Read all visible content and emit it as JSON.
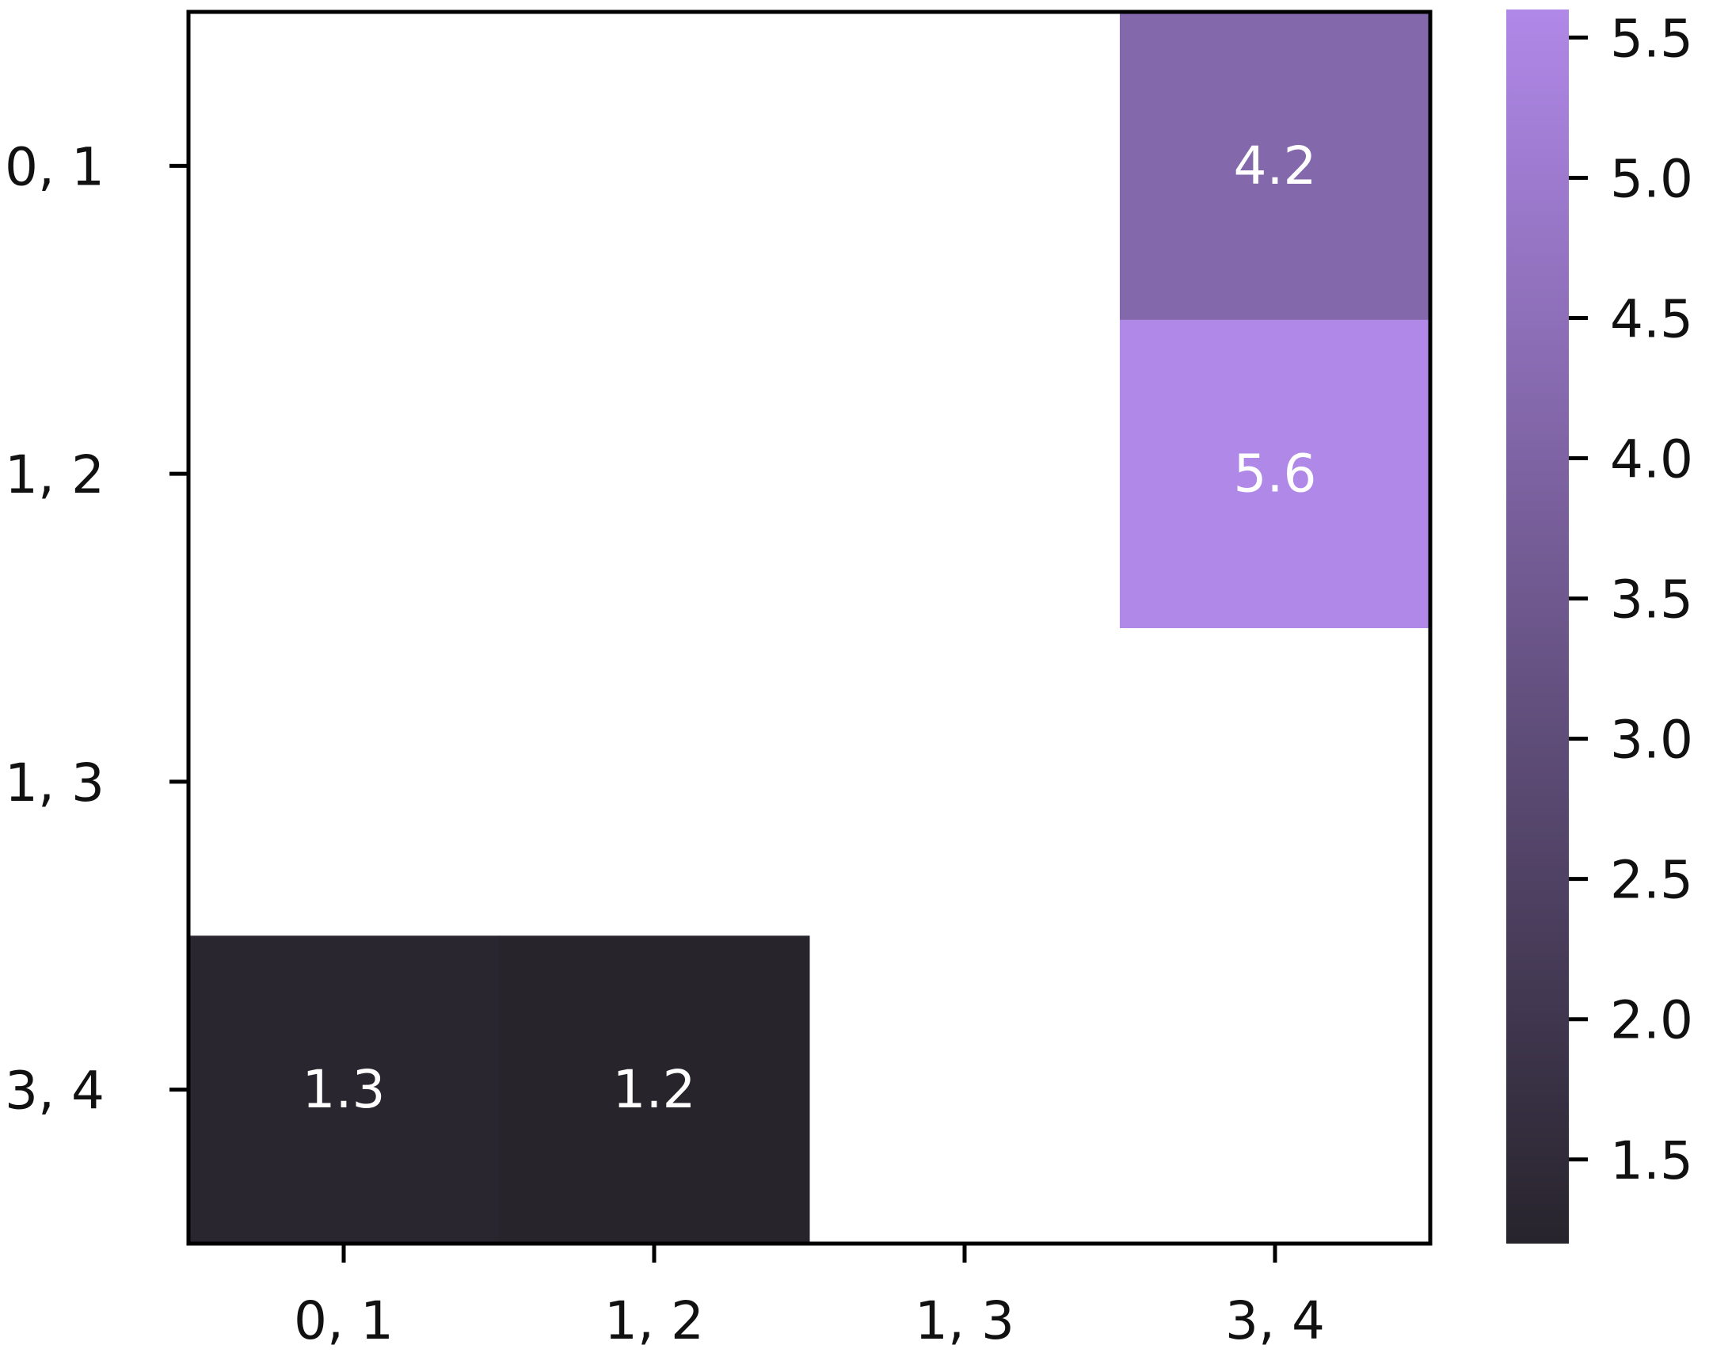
{
  "chart_data": {
    "type": "heatmap",
    "title": "",
    "xlabel": "",
    "ylabel": "",
    "x_categories": [
      "0, 1",
      "1, 2",
      "1, 3",
      "3, 4"
    ],
    "y_categories": [
      "0, 1",
      "1, 2",
      "1, 3",
      "3, 4"
    ],
    "values": [
      [
        null,
        null,
        null,
        4.2
      ],
      [
        null,
        null,
        null,
        5.6
      ],
      [
        null,
        null,
        null,
        null
      ],
      [
        1.3,
        1.2,
        null,
        null
      ]
    ],
    "cell_labels": [
      [
        null,
        null,
        null,
        "4.2"
      ],
      [
        null,
        null,
        null,
        "5.6"
      ],
      [
        null,
        null,
        null,
        null
      ],
      [
        "1.3",
        "1.2",
        null,
        null
      ]
    ],
    "missing_color": "#ffffff",
    "colorbar": {
      "vmin": 1.2,
      "vmax": 5.6,
      "ticks": [
        1.5,
        2.0,
        2.5,
        3.0,
        3.5,
        4.0,
        4.5,
        5.0,
        5.5
      ],
      "tick_labels": [
        "1.5",
        "2.0",
        "2.5",
        "3.0",
        "3.5",
        "4.0",
        "4.5",
        "5.0",
        "5.5"
      ],
      "colors": [
        "#27242c",
        "#b088e8"
      ]
    },
    "grid": false,
    "legend": "colorbar-right"
  }
}
